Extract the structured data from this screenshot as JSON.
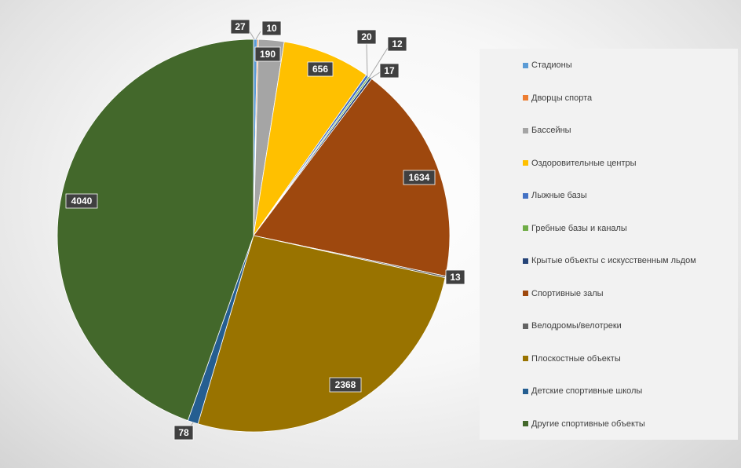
{
  "chart_data": {
    "type": "pie",
    "title": "",
    "categories": [
      "Стадионы",
      "Дворцы спорта",
      "Бассейны",
      "Оздоровительные центры",
      "Лыжные базы",
      "Гребные базы и каналы",
      "Крытые объекты с искусственным льдом",
      "Спортивные залы",
      "Велодромы/велотреки",
      "Плоскостные объекты",
      "Детские спортивные школы",
      "Другие спортивные объекты"
    ],
    "values": [
      27,
      10,
      190,
      656,
      20,
      12,
      17,
      1634,
      13,
      2368,
      78,
      4040
    ],
    "labels": [
      "27",
      "10",
      "190",
      "656",
      "20",
      "12",
      "17",
      "1634",
      "13",
      "2368",
      "78",
      "4040"
    ],
    "colors": [
      "#5b9bd5",
      "#ed7d31",
      "#a5a5a5",
      "#ffc000",
      "#4472c4",
      "#70ad47",
      "#264478",
      "#9e480e",
      "#636363",
      "#997300",
      "#255e91",
      "#43682b"
    ],
    "legend_position": "right",
    "start_angle_deg": 0,
    "direction": "clockwise"
  }
}
